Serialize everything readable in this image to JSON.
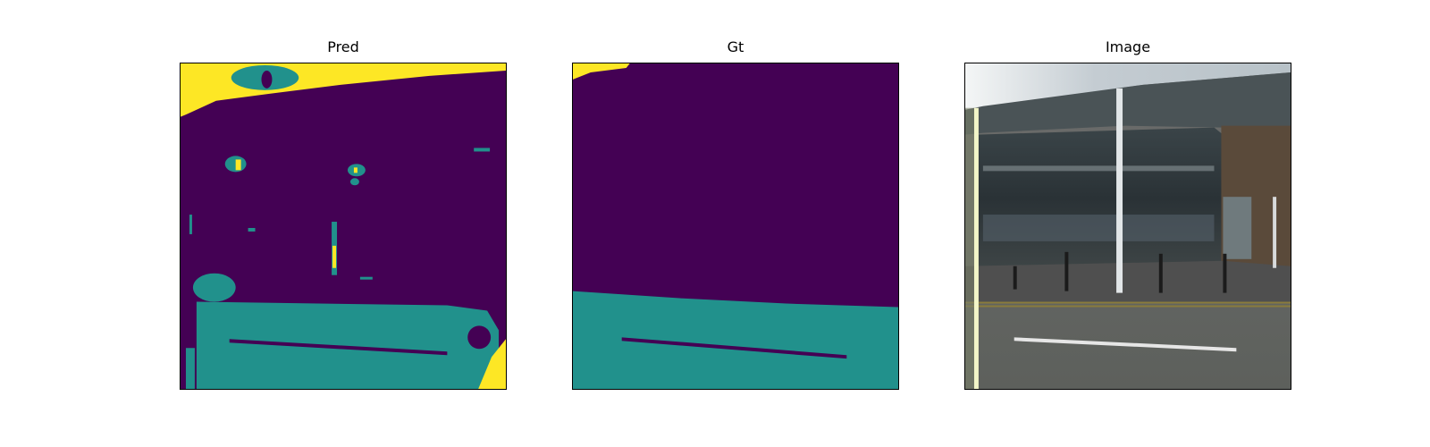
{
  "figure": {
    "panels": [
      {
        "title": "Pred"
      },
      {
        "title": "Gt"
      },
      {
        "title": "Image"
      }
    ]
  },
  "colors": {
    "class_0": "#440154",
    "class_1": "#21918c",
    "class_2": "#fde725",
    "background": "#ffffff"
  }
}
